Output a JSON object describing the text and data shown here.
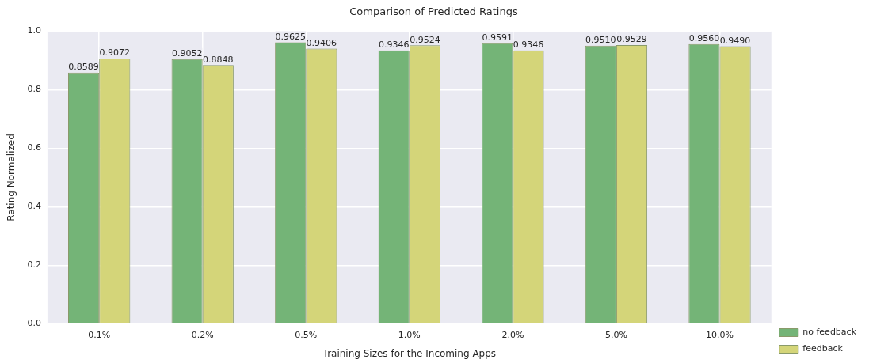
{
  "chart_data": {
    "type": "bar",
    "title": "Comparison of Predicted Ratings",
    "xlabel": "Training Sizes for the Incoming Apps",
    "ylabel": "Rating Normalized",
    "categories": [
      "0.1%",
      "0.2%",
      "0.5%",
      "1.0%",
      "2.0%",
      "5.0%",
      "10.0%"
    ],
    "series": [
      {
        "name": "no feedback",
        "color": "#74b477",
        "values": [
          0.8589,
          0.9052,
          0.9625,
          0.9346,
          0.9591,
          0.951,
          0.956
        ],
        "value_labels": [
          "0.8589",
          "0.9052",
          "0.9625",
          "0.9346",
          "0.9591",
          "0.9510",
          "0.9560"
        ]
      },
      {
        "name": "feedback",
        "color": "#d4d579",
        "values": [
          0.9072,
          0.8848,
          0.9406,
          0.9524,
          0.9346,
          0.9529,
          0.949
        ],
        "value_labels": [
          "0.9072",
          "0.8848",
          "0.9406",
          "0.9524",
          "0.9346",
          "0.9529",
          "0.9490"
        ]
      }
    ],
    "ylim": [
      0,
      1.0
    ],
    "yticks": [
      {
        "value": 0,
        "label": "0.0"
      },
      {
        "value": 0.2,
        "label": "0.2"
      },
      {
        "value": 0.4,
        "label": "0.4"
      },
      {
        "value": 0.6,
        "label": "0.6"
      },
      {
        "value": 0.8,
        "label": "0.8"
      },
      {
        "value": 1.0,
        "label": "1.0"
      }
    ],
    "grid": true,
    "legend": "bottom right"
  }
}
